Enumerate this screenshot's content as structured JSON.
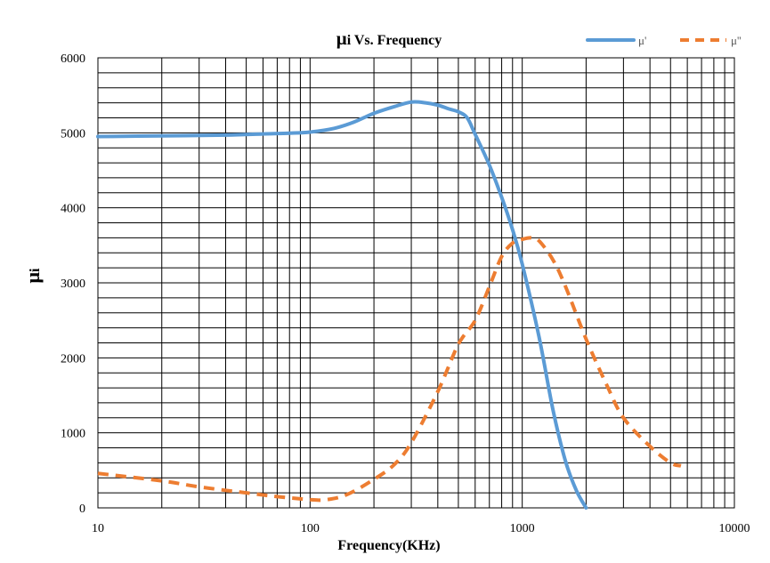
{
  "chart_data": {
    "type": "line",
    "title_symbol": "μ",
    "title": "i Vs. Frequency",
    "xlabel": "Frequency(KHz)",
    "ylabel_symbol": "μ",
    "ylabel": "i",
    "x_scale": "log",
    "xlim": [
      10,
      10000
    ],
    "ylim": [
      0,
      6000
    ],
    "x_ticks": [
      "10",
      "100",
      "1000",
      "10000"
    ],
    "y_ticks": [
      "0",
      "1000",
      "2000",
      "3000",
      "4000",
      "5000",
      "6000"
    ],
    "grid": true,
    "legend_position": "top-right",
    "series": [
      {
        "name": "μ'",
        "color": "#5B9BD5",
        "style": "solid",
        "x": [
          10,
          20,
          40,
          60,
          80,
          100,
          130,
          160,
          200,
          250,
          300,
          350,
          400,
          450,
          500,
          550,
          600,
          700,
          800,
          900,
          1000,
          1200,
          1400,
          1600,
          1800,
          2000
        ],
        "y": [
          4950,
          4960,
          4970,
          4985,
          4995,
          5010,
          5060,
          5140,
          5260,
          5350,
          5410,
          5400,
          5370,
          5320,
          5280,
          5200,
          4980,
          4570,
          4140,
          3710,
          3250,
          2280,
          1290,
          620,
          230,
          0
        ]
      },
      {
        "name": "μ''",
        "color": "#ED7D31",
        "style": "dashed",
        "x": [
          10,
          20,
          30,
          50,
          70,
          100,
          120,
          150,
          200,
          250,
          300,
          400,
          500,
          600,
          700,
          800,
          900,
          1000,
          1100,
          1200,
          1400,
          1600,
          2000,
          2500,
          3000,
          4000,
          5000,
          5600
        ],
        "y": [
          460,
          360,
          280,
          200,
          150,
          110,
          110,
          180,
          380,
          580,
          870,
          1550,
          2180,
          2500,
          2950,
          3350,
          3530,
          3580,
          3600,
          3560,
          3300,
          2950,
          2250,
          1640,
          1200,
          820,
          600,
          560
        ]
      }
    ]
  }
}
